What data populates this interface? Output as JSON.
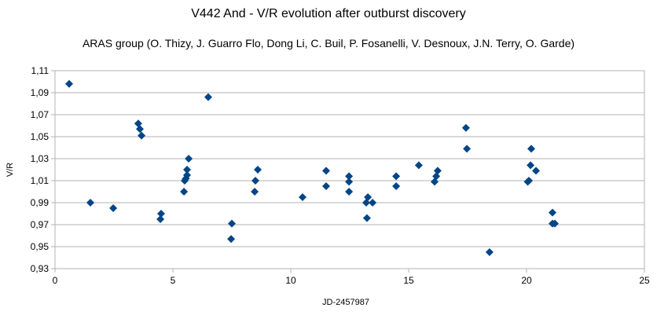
{
  "chart_data": {
    "type": "scatter",
    "title": "V442 And - V/R evolution after outburst discovery",
    "subtitle": "ARAS group (O. Thizy, J. Guarro Flo, Dong Li, C. Buil, P. Fosanelli, V. Desnoux, J.N. Terry, O. Garde)",
    "xlabel": "JD-2457987",
    "ylabel": "V/R",
    "xlim": [
      0,
      25
    ],
    "ylim": [
      0.93,
      1.11
    ],
    "x_ticks": [
      "0",
      "5",
      "10",
      "15",
      "20",
      "25"
    ],
    "y_ticks": [
      "0,93",
      "0,95",
      "0,97",
      "0,99",
      "1,01",
      "1,03",
      "1,05",
      "1,07",
      "1,09",
      "1,11"
    ],
    "grid": "horizontal",
    "marker": "diamond",
    "color": "#004586",
    "points": [
      [
        0.6,
        1.098
      ],
      [
        1.5,
        0.99
      ],
      [
        2.47,
        0.985
      ],
      [
        3.53,
        1.062
      ],
      [
        3.6,
        1.057
      ],
      [
        3.67,
        1.051
      ],
      [
        4.5,
        0.98
      ],
      [
        4.47,
        0.975
      ],
      [
        5.47,
        1.0
      ],
      [
        5.5,
        1.01
      ],
      [
        5.55,
        1.012
      ],
      [
        5.6,
        1.015
      ],
      [
        5.6,
        1.02
      ],
      [
        5.67,
        1.03
      ],
      [
        6.5,
        1.086
      ],
      [
        7.5,
        0.971
      ],
      [
        7.47,
        0.957
      ],
      [
        8.47,
        1.0
      ],
      [
        8.5,
        1.01
      ],
      [
        8.6,
        1.02
      ],
      [
        10.5,
        0.995
      ],
      [
        11.5,
        1.019
      ],
      [
        11.5,
        1.005
      ],
      [
        12.47,
        1.014
      ],
      [
        12.47,
        1.009
      ],
      [
        12.47,
        1.0
      ],
      [
        13.2,
        0.99
      ],
      [
        13.27,
        0.995
      ],
      [
        13.47,
        0.99
      ],
      [
        13.23,
        0.976
      ],
      [
        14.47,
        1.014
      ],
      [
        14.47,
        1.005
      ],
      [
        15.43,
        1.024
      ],
      [
        16.1,
        1.009
      ],
      [
        16.17,
        1.014
      ],
      [
        16.23,
        1.019
      ],
      [
        17.43,
        1.058
      ],
      [
        17.47,
        1.039
      ],
      [
        18.43,
        0.945
      ],
      [
        20.05,
        1.009
      ],
      [
        20.1,
        1.01
      ],
      [
        20.17,
        1.024
      ],
      [
        20.2,
        1.039
      ],
      [
        20.4,
        1.019
      ],
      [
        21.1,
        0.981
      ],
      [
        21.1,
        0.971
      ],
      [
        21.2,
        0.971
      ]
    ]
  }
}
